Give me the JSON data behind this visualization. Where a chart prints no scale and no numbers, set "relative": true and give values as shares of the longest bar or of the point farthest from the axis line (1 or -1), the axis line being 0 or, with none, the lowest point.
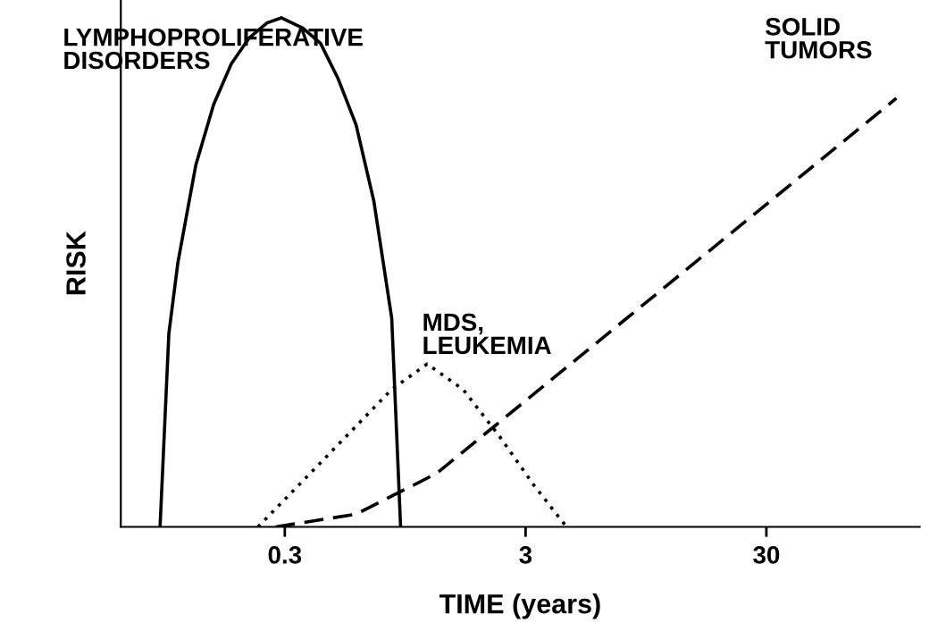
{
  "chart_data": {
    "type": "line",
    "xlabel": "TIME (years)",
    "ylabel": "RISK",
    "log": "x",
    "relative": true,
    "grid": false,
    "legend": false,
    "tick_labels": "x",
    "marker": "none",
    "xlim": [
      0.0625,
      130
    ],
    "xticks": [
      0.3,
      3,
      30
    ],
    "series": [
      {
        "name": "LYMPHOPROLIFERATIVE\nDISORDERS",
        "color": "#000000",
        "line_style": "solid",
        "x": [
          0.091,
          0.099,
          0.108,
          0.128,
          0.152,
          0.18,
          0.213,
          0.253,
          0.29,
          0.356,
          0.422,
          0.5,
          0.593,
          0.703,
          0.834,
          0.908
        ],
        "values": [
          0,
          0.38,
          0.52,
          0.71,
          0.83,
          0.91,
          0.96,
          0.99,
          1,
          0.98,
          0.95,
          0.88,
          0.79,
          0.64,
          0.41,
          0
        ]
      },
      {
        "name": "MDS,\nLEUKEMIA",
        "color": "#000000",
        "line_style": "dotted",
        "x": [
          0.232,
          0.356,
          0.545,
          0.834,
          1.17,
          1.65,
          2.32,
          3.27,
          4.44
        ],
        "values": [
          0,
          0.09,
          0.18,
          0.27,
          0.32,
          0.27,
          0.18,
          0.08,
          0
        ]
      },
      {
        "name": "SOLID\nTUMORS",
        "color": "#000000",
        "line_style": "dashed",
        "x": [
          0.275,
          0.593,
          1.28,
          104
        ],
        "values": [
          0,
          0.025,
          0.105,
          0.842
        ]
      }
    ]
  }
}
